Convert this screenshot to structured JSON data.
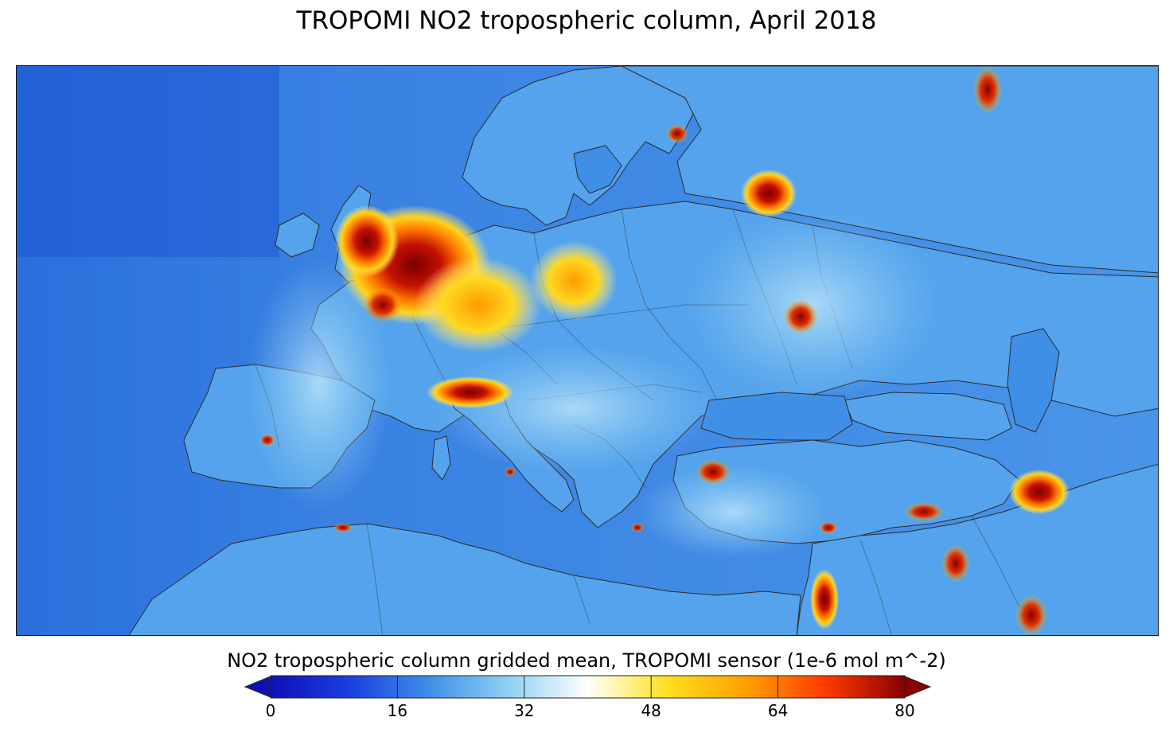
{
  "title": "TROPOMI NO2 tropospheric column, April 2018",
  "colorbar": {
    "label": "NO2 tropospheric column gridded mean, TROPOMI sensor (1e-6 mol m^-2)",
    "min": 0,
    "max": 80,
    "ticks": [
      "0",
      "16",
      "32",
      "48",
      "64",
      "80"
    ],
    "extend": "both",
    "colors": [
      "#1010b8",
      "#1a3fe0",
      "#3f8fe6",
      "#8fd0f4",
      "#ffffff",
      "#ffe020",
      "#ffa000",
      "#ff3a00",
      "#8a0000"
    ]
  },
  "map": {
    "projection": "lat-lon",
    "region": "Europe, North Africa and Middle East",
    "ocean_color": "#3f8fe6",
    "land_color": "#4c9bea",
    "border_color": "#333333"
  }
}
